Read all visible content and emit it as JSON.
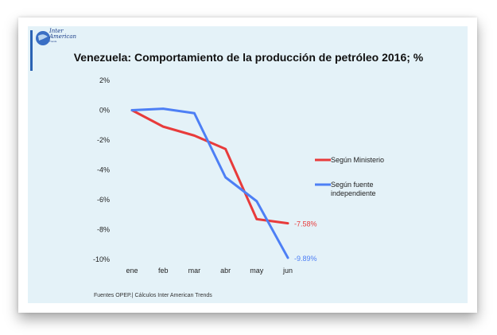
{
  "logo": {
    "text": "Inter American",
    "sub": "Trends"
  },
  "source": "Fuentes OPEP.| Cálculos Inter American Trends",
  "colors": {
    "ministerio": "#e83b3b",
    "fuente": "#4d7ff5",
    "background": "#e4f2f8"
  },
  "chart_data": {
    "type": "line",
    "title": "Venezuela: Comportamiento de la producción de petróleo 2016; %",
    "categories": [
      "ene",
      "feb",
      "mar",
      "abr",
      "may",
      "jun"
    ],
    "yticks": [
      "2%",
      "0%",
      "-2%",
      "-4%",
      "-6%",
      "-8%",
      "-10%"
    ],
    "ylim": [
      -10,
      2
    ],
    "grid": false,
    "legend_position": "right",
    "series": [
      {
        "name": "Según Ministerio",
        "color": "#e83b3b",
        "values": [
          0,
          -1.1,
          -1.7,
          -2.6,
          -7.3,
          -7.58
        ],
        "end_label": "-7.58%"
      },
      {
        "name": "Según fuente independiente",
        "color": "#4d7ff5",
        "values": [
          0,
          0.1,
          -0.2,
          -4.5,
          -6.1,
          -9.89
        ],
        "end_label": "-9.89%"
      }
    ]
  }
}
